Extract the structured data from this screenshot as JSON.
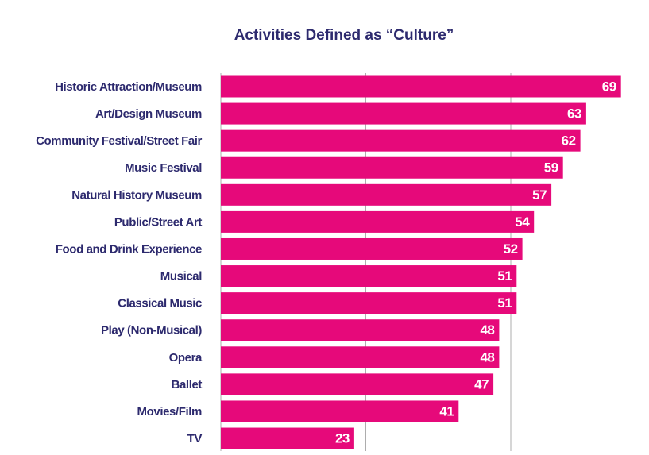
{
  "chart_data": {
    "type": "bar",
    "orientation": "horizontal",
    "title": "Activities Defined as “Culture”",
    "categories": [
      "Historic Attraction/Museum",
      "Art/Design Museum",
      "Community Festival/Street Fair",
      "Music Festival",
      "Natural History Museum",
      "Public/Street Art",
      "Food and Drink Experience",
      "Musical",
      "Classical Music",
      "Play (Non-Musical)",
      "Opera",
      "Ballet",
      "Movies/Film",
      "TV"
    ],
    "values": [
      69,
      63,
      62,
      59,
      57,
      54,
      52,
      51,
      51,
      48,
      48,
      47,
      41,
      23
    ],
    "color": "#e6097a",
    "xlim": [
      0,
      70
    ],
    "xticks": [
      0,
      25,
      50
    ],
    "grid": true
  }
}
